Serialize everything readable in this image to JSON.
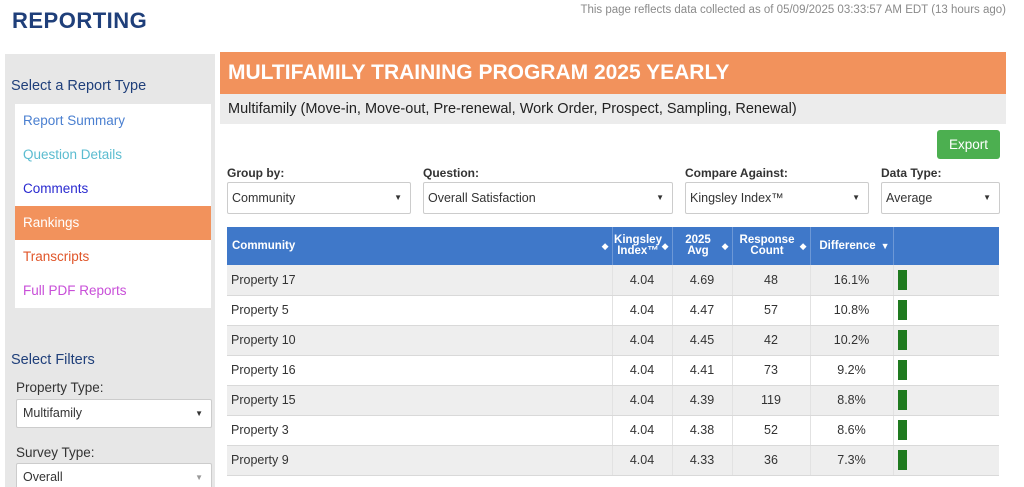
{
  "header": {
    "brand": "REPORTING",
    "timestamp": "This page reflects data collected as of 05/09/2025 03:33:57 AM EDT (13 hours ago)"
  },
  "sidebar": {
    "report_type_heading": "Select a Report Type",
    "report_types": [
      {
        "label": "Report Summary",
        "color": "#4a7fd0"
      },
      {
        "label": "Question Details",
        "color": "#5bbcd0"
      },
      {
        "label": "Comments",
        "color": "#2a2ad0"
      },
      {
        "label": "Rankings",
        "color": "#ffffff",
        "active": true
      },
      {
        "label": "Transcripts",
        "color": "#e0562a"
      },
      {
        "label": "Full PDF Reports",
        "color": "#c84fd8"
      }
    ],
    "filters_heading": "Select Filters",
    "property_type_label": "Property Type:",
    "property_type_value": "Multifamily",
    "survey_type_label": "Survey Type:",
    "survey_type_value": "Overall"
  },
  "main": {
    "title": "MULTIFAMILY TRAINING PROGRAM 2025 YEARLY",
    "subtitle": "Multifamily (Move-in, Move-out, Pre-renewal, Work Order, Prospect, Sampling, Renewal)",
    "export_label": "Export",
    "controls": {
      "group_by_label": "Group by:",
      "group_by_value": "Community",
      "question_label": "Question:",
      "question_value": "Overall Satisfaction",
      "compare_label": "Compare Against:",
      "compare_value": "Kingsley Index™",
      "data_type_label": "Data Type:",
      "data_type_value": "Average"
    },
    "table": {
      "headers": {
        "community": "Community",
        "kingsley_1": "Kingsley",
        "kingsley_2": "Index™",
        "avg_1": "2025",
        "avg_2": "Avg",
        "resp_1": "Response",
        "resp_2": "Count",
        "difference": "Difference"
      },
      "rows": [
        {
          "community": "Property 17",
          "index": "4.04",
          "avg": "4.69",
          "count": "48",
          "diff": "16.1%"
        },
        {
          "community": "Property 5",
          "index": "4.04",
          "avg": "4.47",
          "count": "57",
          "diff": "10.8%"
        },
        {
          "community": "Property 10",
          "index": "4.04",
          "avg": "4.45",
          "count": "42",
          "diff": "10.2%"
        },
        {
          "community": "Property 16",
          "index": "4.04",
          "avg": "4.41",
          "count": "73",
          "diff": "9.2%"
        },
        {
          "community": "Property 15",
          "index": "4.04",
          "avg": "4.39",
          "count": "119",
          "diff": "8.8%"
        },
        {
          "community": "Property 3",
          "index": "4.04",
          "avg": "4.38",
          "count": "52",
          "diff": "8.6%"
        },
        {
          "community": "Property 9",
          "index": "4.04",
          "avg": "4.33",
          "count": "36",
          "diff": "7.3%"
        }
      ],
      "bar_color": "#1f7a1f"
    }
  }
}
